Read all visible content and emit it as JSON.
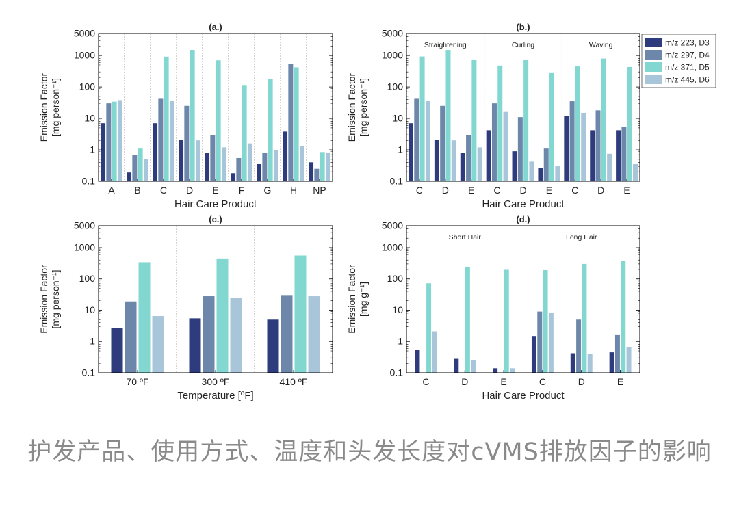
{
  "colors": {
    "D3": "#2e3c7e",
    "D4": "#6d87aa",
    "D5": "#82d8d1",
    "D6": "#a9c5da",
    "divider": "#8f8f8f"
  },
  "legend": {
    "entries": [
      {
        "key": "D3",
        "label": "m/z 223, D3"
      },
      {
        "key": "D4",
        "label": "m/z 297, D4"
      },
      {
        "key": "D5",
        "label": "m/z 371, D5"
      },
      {
        "key": "D6",
        "label": "m/z 445, D6"
      }
    ]
  },
  "caption": "护发产品、使用方式、温度和头发长度对cVMS排放因子的影响",
  "chart_data": [
    {
      "id": "a",
      "type": "bar",
      "title": "(a.)",
      "yscale": "log",
      "ylabel_line1": "Emission Factor",
      "ylabel_line2": "[mg person⁻¹]",
      "xlabel": "Hair Care Product",
      "ylim": [
        0.1,
        5000
      ],
      "yticks": [
        "0.1",
        "1",
        "10",
        "100",
        "1000",
        "5000"
      ],
      "group_labels": [],
      "categories": [
        "A",
        "B",
        "C",
        "D",
        "E",
        "F",
        "G",
        "H",
        "NP"
      ],
      "series": [
        {
          "key": "D3",
          "name": "m/z 223, D3",
          "values": [
            7,
            0.19,
            7,
            2.1,
            0.8,
            0.18,
            0.35,
            3.8,
            0.4
          ]
        },
        {
          "key": "D4",
          "name": "m/z 297, D4",
          "values": [
            30,
            0.7,
            42,
            25,
            3,
            0.55,
            0.8,
            550,
            0.25
          ]
        },
        {
          "key": "D5",
          "name": "m/z 371, D5",
          "values": [
            34,
            1.1,
            920,
            1500,
            700,
            115,
            175,
            420,
            0.85
          ]
        },
        {
          "key": "D6",
          "name": "m/z 445, D6",
          "values": [
            38,
            0.5,
            37,
            2,
            1.2,
            1.6,
            1,
            1.3,
            0.8
          ]
        }
      ]
    },
    {
      "id": "b",
      "type": "bar",
      "title": "(b.)",
      "yscale": "log",
      "ylabel_line1": "Emission Factor",
      "ylabel_line2": "[mg person⁻¹]",
      "xlabel": "Hair Care Product",
      "ylim": [
        0.1,
        5000
      ],
      "yticks": [
        "0.1",
        "1",
        "10",
        "100",
        "1000",
        "5000"
      ],
      "group_labels": [
        "Straightening",
        "Curling",
        "Waving"
      ],
      "categories": [
        "C",
        "D",
        "E",
        "C",
        "D",
        "E",
        "C",
        "D",
        "E"
      ],
      "series": [
        {
          "key": "D3",
          "name": "m/z 223, D3",
          "values": [
            7,
            2.1,
            0.8,
            4.2,
            0.9,
            0.26,
            12,
            4.2,
            4.2
          ]
        },
        {
          "key": "D4",
          "name": "m/z 297, D4",
          "values": [
            42,
            25,
            3,
            30,
            11,
            1.1,
            35,
            18,
            5.5
          ]
        },
        {
          "key": "D5",
          "name": "m/z 371, D5",
          "values": [
            930,
            1500,
            720,
            480,
            730,
            290,
            450,
            800,
            430
          ]
        },
        {
          "key": "D6",
          "name": "m/z 445, D6",
          "values": [
            37,
            2,
            1.2,
            16,
            0.42,
            0.3,
            15,
            0.75,
            0.35
          ]
        }
      ]
    },
    {
      "id": "c",
      "type": "bar",
      "title": "(c.)",
      "yscale": "log",
      "ylabel_line1": "Emission Factor",
      "ylabel_line2": "[mg person⁻¹]",
      "xlabel": "Temperature [ºF]",
      "ylim": [
        0.1,
        5000
      ],
      "yticks": [
        "0.1",
        "1",
        "10",
        "100",
        "1000",
        "5000"
      ],
      "group_labels": [],
      "categories": [
        "70 ºF",
        "300 ºF",
        "410 ºF"
      ],
      "series": [
        {
          "key": "D3",
          "name": "m/z 223, D3",
          "values": [
            2.7,
            5.5,
            5
          ]
        },
        {
          "key": "D4",
          "name": "m/z 297, D4",
          "values": [
            19,
            28,
            29
          ]
        },
        {
          "key": "D5",
          "name": "m/z 371, D5",
          "values": [
            340,
            450,
            560
          ]
        },
        {
          "key": "D6",
          "name": "m/z 445, D6",
          "values": [
            6.5,
            25,
            28
          ]
        }
      ]
    },
    {
      "id": "d",
      "type": "bar",
      "title": "(d.)",
      "yscale": "log",
      "ylabel_line1": "Emission Factor",
      "ylabel_line2": "[mg g⁻¹]",
      "xlabel": "Hair Care Product",
      "ylim": [
        0.1,
        5000
      ],
      "yticks": [
        "0.1",
        "1",
        "10",
        "100",
        "1000",
        "5000"
      ],
      "group_labels": [
        "Short Hair",
        "Long Hair"
      ],
      "categories": [
        "C",
        "D",
        "E",
        "C",
        "D",
        "E"
      ],
      "series": [
        {
          "key": "D3",
          "name": "m/z 223, D3",
          "values": [
            0.55,
            0.28,
            0.14,
            1.5,
            0.42,
            0.45
          ]
        },
        {
          "key": "D4",
          "name": "m/z 297, D4",
          "values": [
            0.1,
            0.1,
            0.1,
            9,
            5,
            1.6
          ]
        },
        {
          "key": "D5",
          "name": "m/z 371, D5",
          "values": [
            72,
            235,
            195,
            190,
            300,
            380
          ]
        },
        {
          "key": "D6",
          "name": "m/z 445, D6",
          "values": [
            2.1,
            0.26,
            0.14,
            8,
            0.4,
            0.65
          ]
        }
      ]
    }
  ]
}
